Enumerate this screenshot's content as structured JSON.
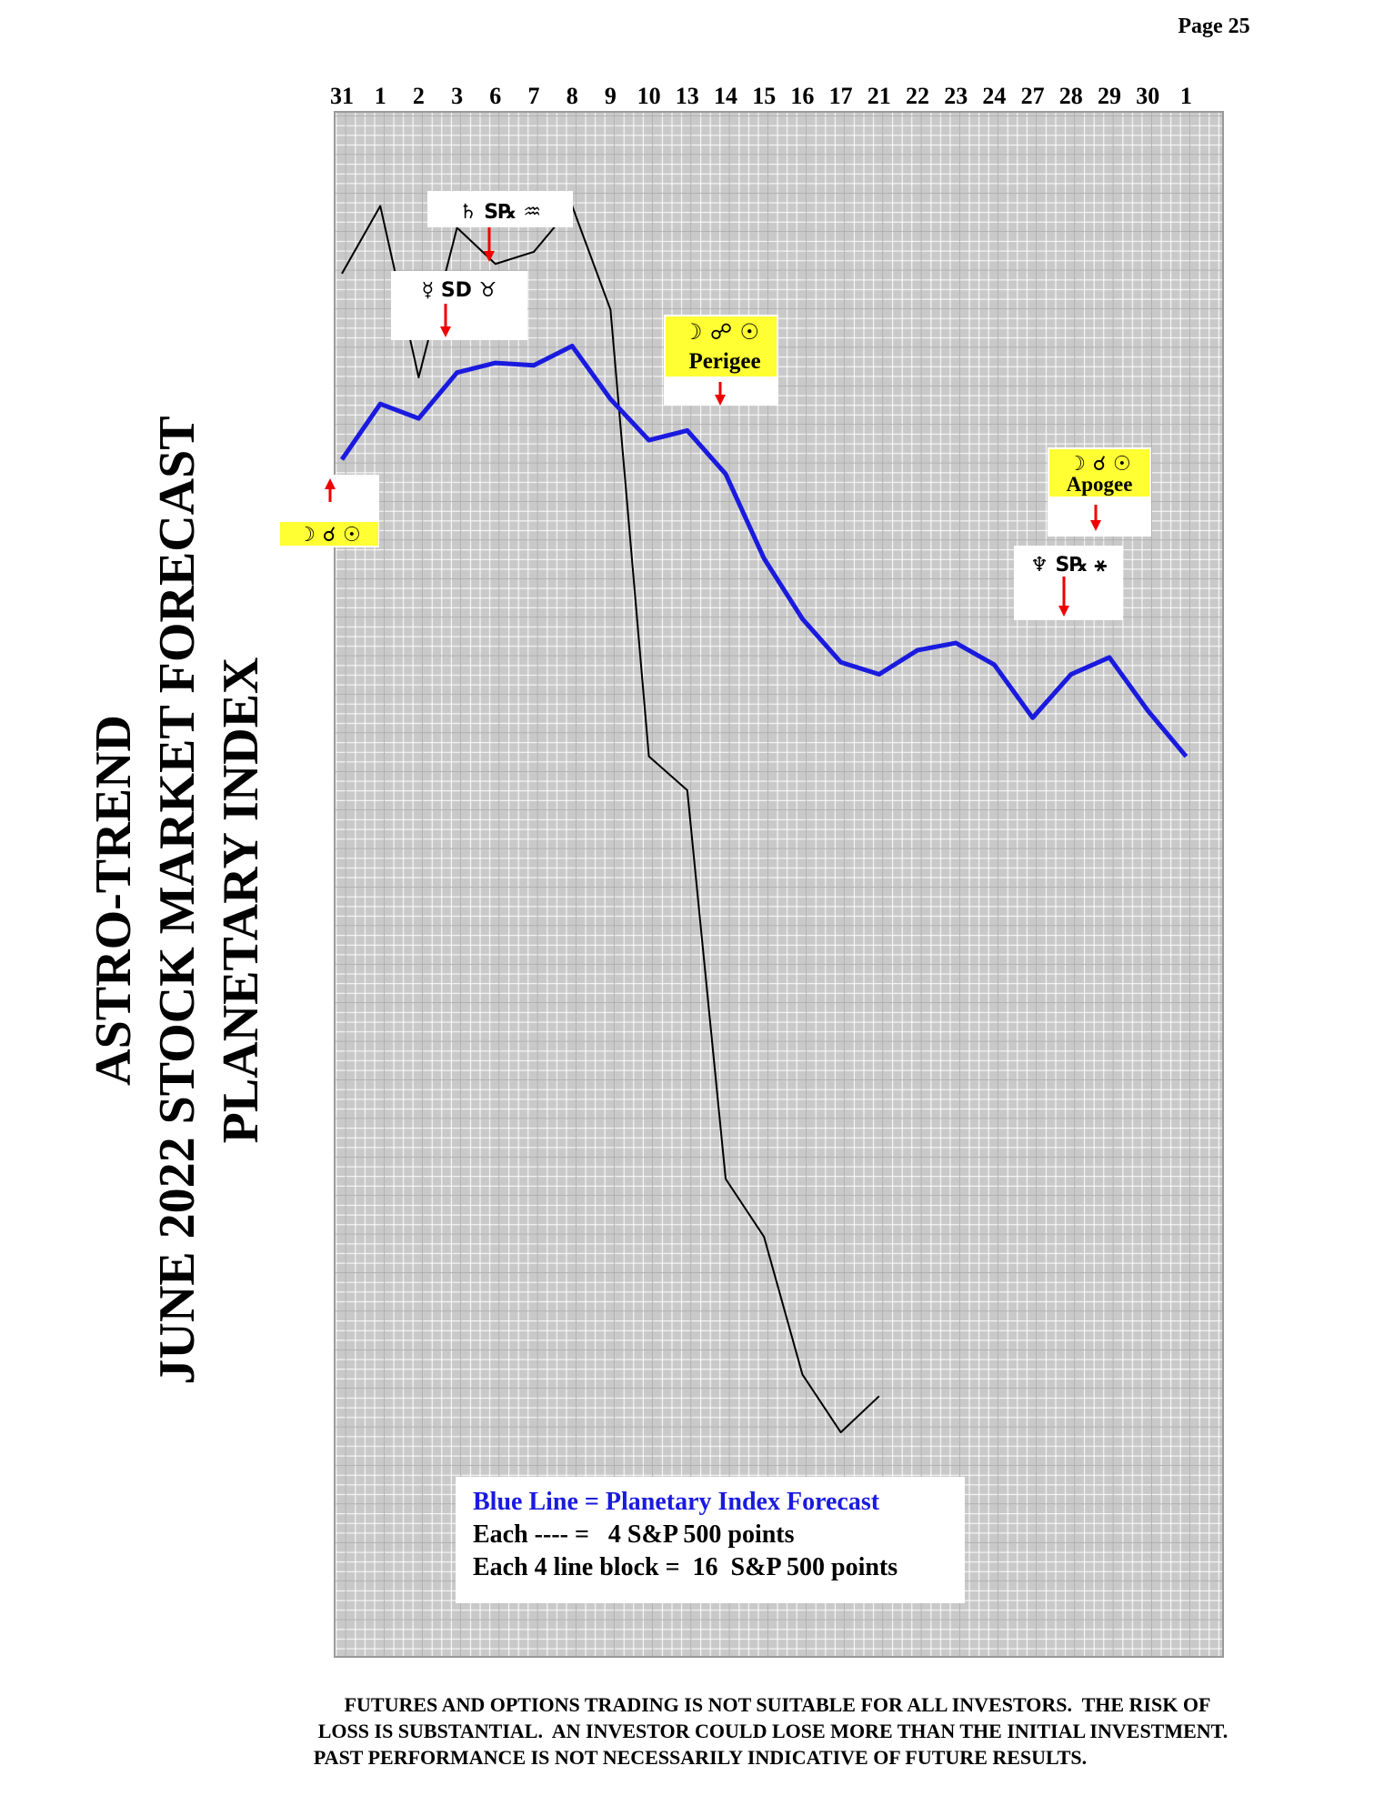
{
  "page": "Page  25",
  "title_lines": [
    "ASTRO-TREND",
    "JUNE 2022  STOCK MARKET FORECAST",
    "PLANETARY INDEX"
  ],
  "chart_data": {
    "type": "line",
    "categories": [
      "31",
      "1",
      "2",
      "3",
      "6",
      "7",
      "8",
      "9",
      "10",
      "13",
      "14",
      "15",
      "16",
      "17",
      "21",
      "22",
      "23",
      "24",
      "27",
      "28",
      "29",
      "30",
      "1"
    ],
    "ylim": [
      0,
      640
    ],
    "series": [
      {
        "name": "Blue Line = Planetary Index Forecast",
        "color": "#1a1adf",
        "values": [
          496,
          519,
          513,
          532,
          536,
          535,
          543,
          521,
          504,
          508,
          490,
          455,
          430,
          412,
          407,
          417,
          420,
          411,
          389,
          407,
          414,
          392,
          373
        ]
      },
      {
        "color": "#000000",
        "values": [
          573,
          601,
          530,
          592,
          577,
          582,
          601,
          558,
          373,
          359,
          198,
          174,
          117,
          93,
          108,
          null,
          null,
          null,
          null,
          null,
          null,
          null,
          null
        ]
      }
    ],
    "annotations": [
      "☽ ☌ ☉",
      "☽ ☍ ☉",
      "Perigee",
      "☽ ☌ ☉",
      "Apogee",
      "♄ S℞ ♒",
      "☿ SD ♉",
      "♆ S℞ ⚹"
    ],
    "legend_notes": [
      "Each ---- =   4 S&P 500 points",
      "Each 4 line block =  16  S&P 500 points"
    ]
  },
  "disclaimer": [
    "FUTURES AND OPTIONS TRADING IS NOT SUITABLE FOR ALL INVESTORS.  THE RISK OF",
    "LOSS IS SUBSTANTIAL.  AN INVESTOR COULD LOSE MORE THAN THE INITIAL INVESTMENT.",
    "PAST PERFORMANCE IS NOT NECESSARILY INDICATIVE OF FUTURE RESULTS."
  ]
}
